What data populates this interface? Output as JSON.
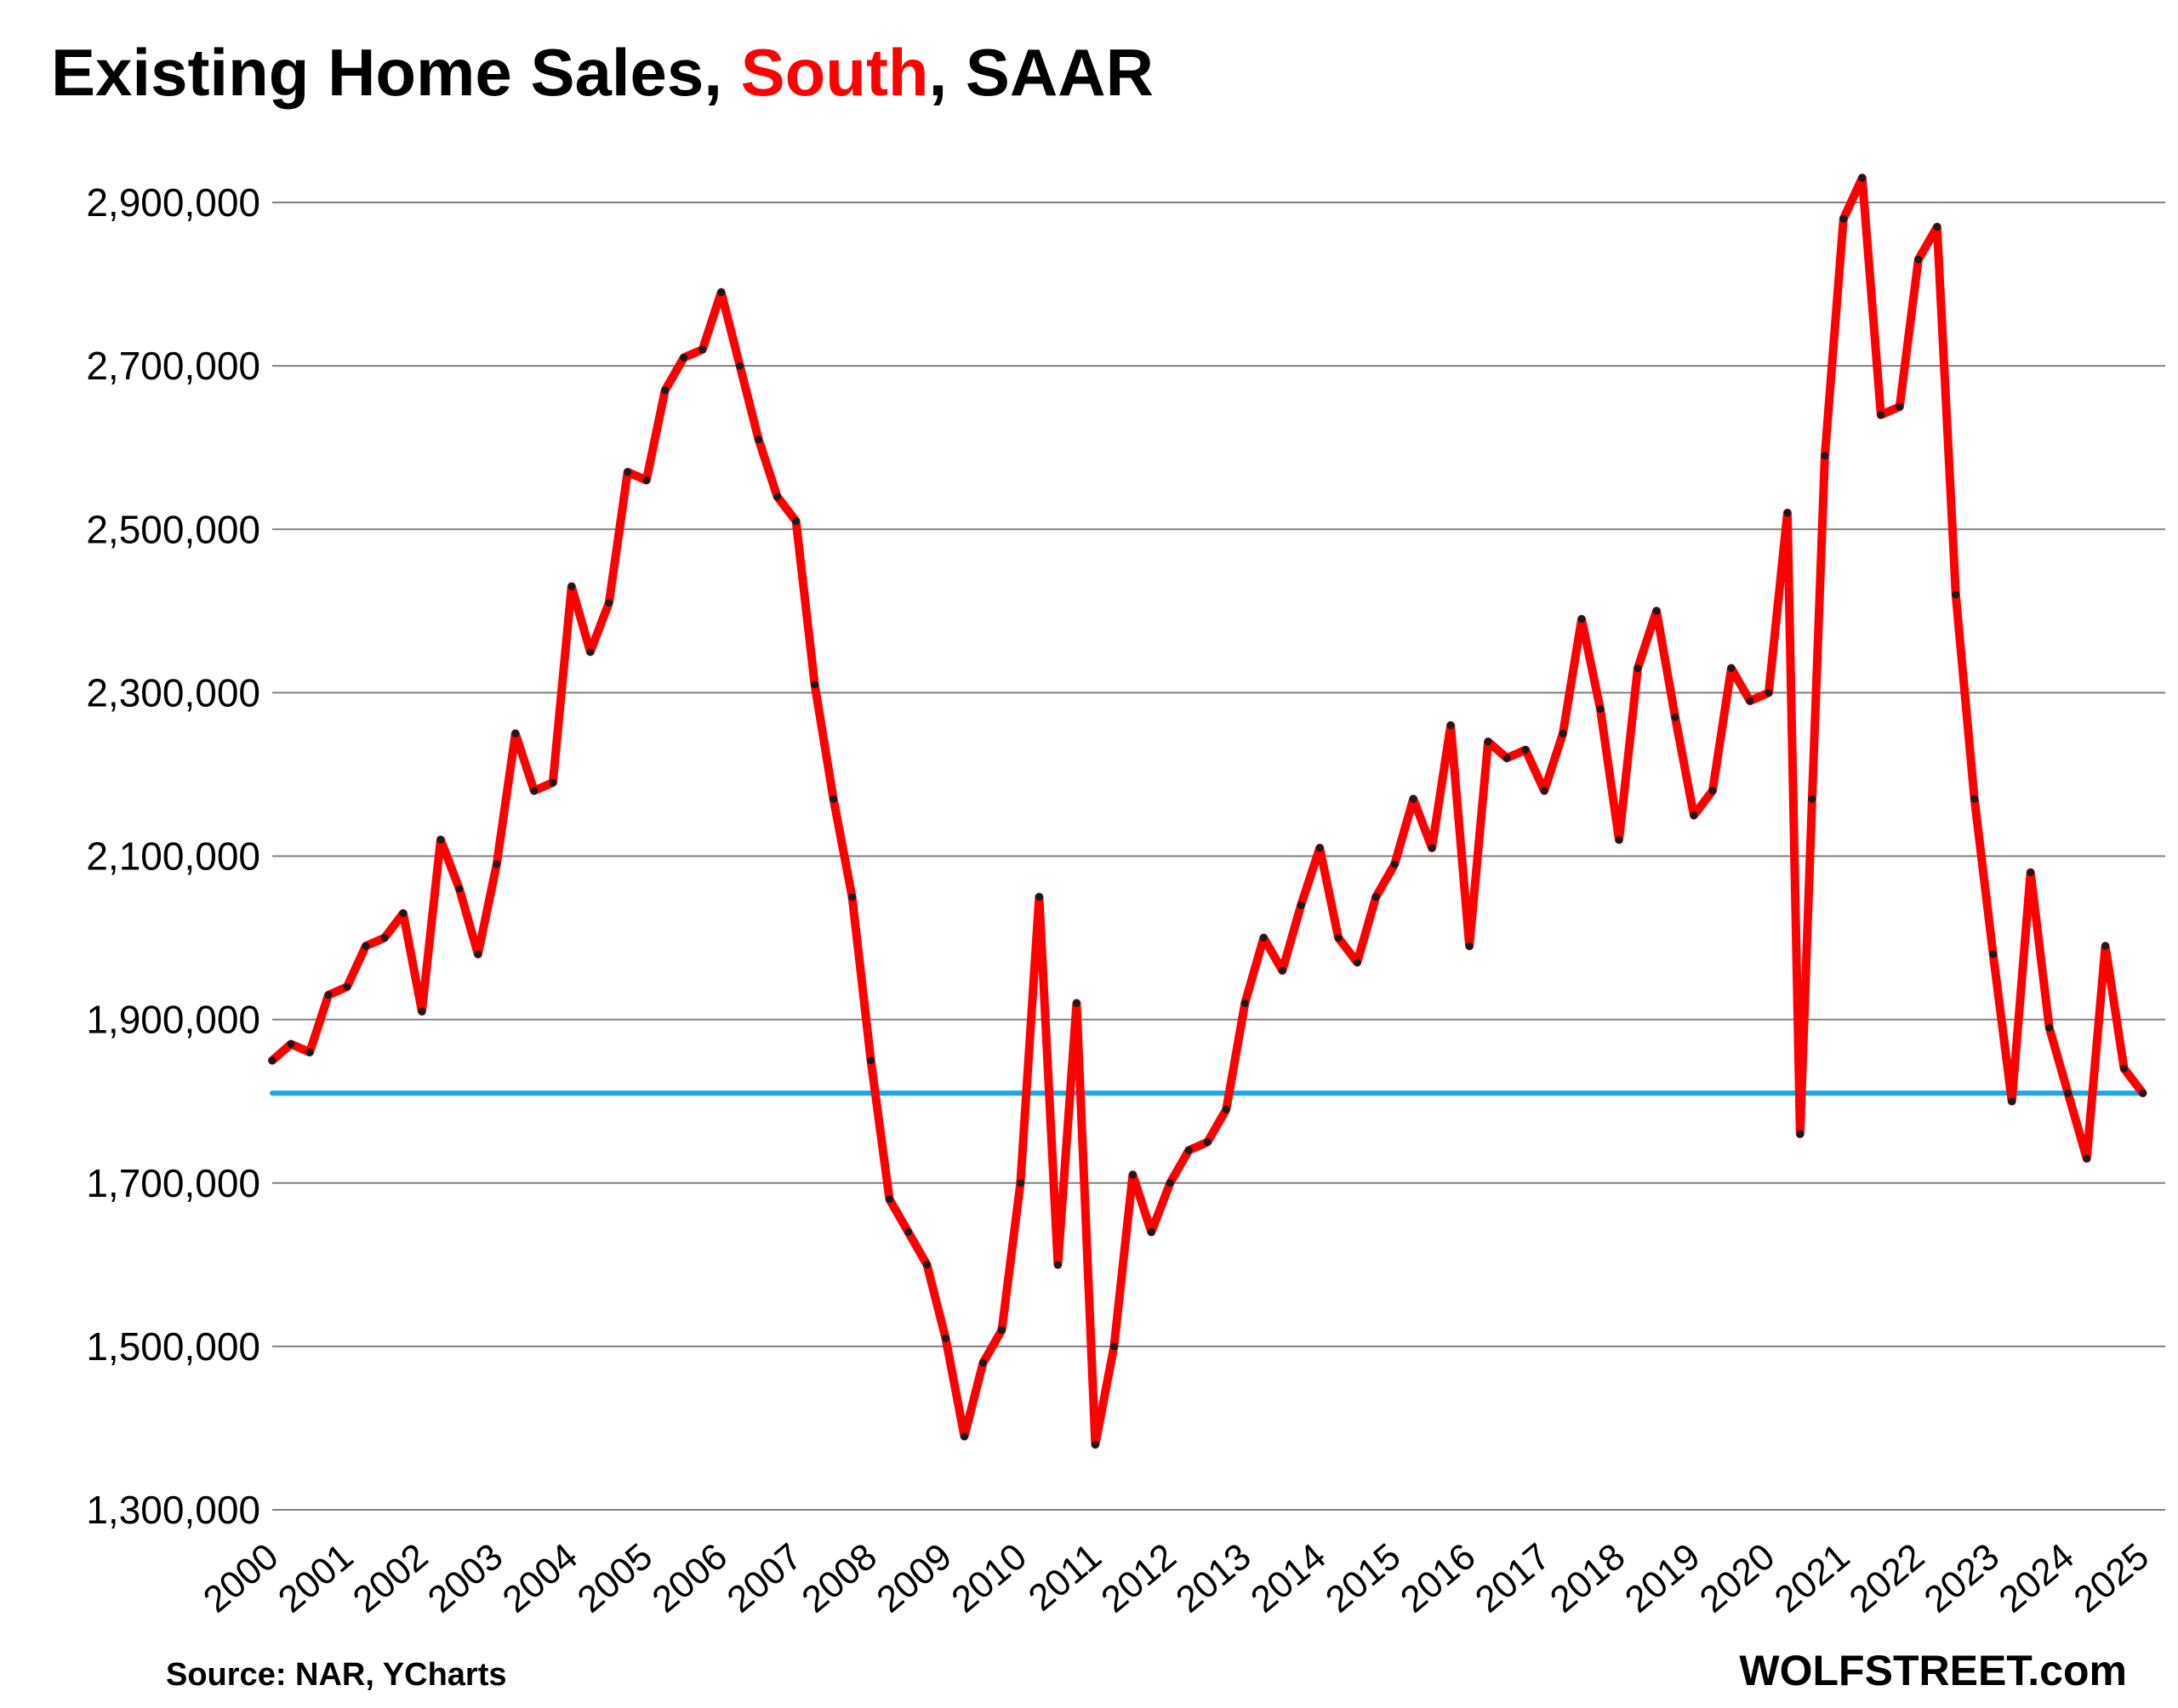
{
  "chart_data": {
    "type": "line",
    "title": "Existing Home Sales, South, SAAR",
    "title_parts": [
      "Existing Home Sales, ",
      "South",
      ", SAAR"
    ],
    "source": "Source: NAR, YCharts",
    "brand": "WOLFSTREET.com",
    "xlabel": "",
    "ylabel": "",
    "ylim": [
      1300000,
      2900000
    ],
    "y_ticks": [
      1300000,
      1500000,
      1700000,
      1900000,
      2100000,
      2300000,
      2500000,
      2700000,
      2900000
    ],
    "y_tick_labels": [
      "1,300,000",
      "1,500,000",
      "1,700,000",
      "1,900,000",
      "2,100,000",
      "2,300,000",
      "2,500,000",
      "2,700,000",
      "2,900,000"
    ],
    "x_tick_labels": [
      "2000",
      "2001",
      "2002",
      "2003",
      "2004",
      "2005",
      "2006",
      "2007",
      "2008",
      "2009",
      "2010",
      "2011",
      "2012",
      "2013",
      "2014",
      "2015",
      "2016",
      "2017",
      "2018",
      "2019",
      "2020",
      "2021",
      "2022",
      "2023",
      "2024",
      "2025"
    ],
    "grid": true,
    "legend": "none",
    "series": [
      {
        "color": "#ff0000",
        "x": [
          2000.0,
          2000.25,
          2000.5,
          2000.75,
          2001.0,
          2001.25,
          2001.5,
          2001.75,
          2002.0,
          2002.25,
          2002.5,
          2002.75,
          2003.0,
          2003.25,
          2003.5,
          2003.75,
          2004.0,
          2004.25,
          2004.5,
          2004.75,
          2005.0,
          2005.25,
          2005.5,
          2005.75,
          2006.0,
          2006.25,
          2006.5,
          2006.75,
          2007.0,
          2007.25,
          2007.5,
          2007.75,
          2008.0,
          2008.25,
          2008.5,
          2008.75,
          2009.0,
          2009.25,
          2009.5,
          2009.75,
          2010.0,
          2010.25,
          2010.5,
          2010.75,
          2011.0,
          2011.25,
          2011.5,
          2011.75,
          2012.0,
          2012.25,
          2012.5,
          2012.75,
          2013.0,
          2013.25,
          2013.5,
          2013.75,
          2014.0,
          2014.25,
          2014.5,
          2014.75,
          2015.0,
          2015.25,
          2015.5,
          2015.75,
          2016.0,
          2016.25,
          2016.5,
          2016.75,
          2017.0,
          2017.25,
          2017.5,
          2017.75,
          2018.0,
          2018.25,
          2018.5,
          2018.75,
          2019.0,
          2019.25,
          2019.5,
          2019.75,
          2020.0,
          2020.25,
          2020.42,
          2020.58,
          2020.75,
          2021.0,
          2021.25,
          2021.5,
          2021.75,
          2022.0,
          2022.25,
          2022.5,
          2022.75,
          2023.0,
          2023.25,
          2023.5,
          2023.75,
          2024.0,
          2024.25,
          2024.5,
          2024.75,
          2025.0
        ],
        "values": [
          1850000,
          1870000,
          1860000,
          1930000,
          1940000,
          1990000,
          2000000,
          2030000,
          1910000,
          2120000,
          2060000,
          1980000,
          2090000,
          2250000,
          2180000,
          2190000,
          2430000,
          2350000,
          2410000,
          2570000,
          2560000,
          2670000,
          2710000,
          2720000,
          2790000,
          2700000,
          2610000,
          2540000,
          2510000,
          2310000,
          2170000,
          2050000,
          1850000,
          1680000,
          1640000,
          1600000,
          1510000,
          1390000,
          1480000,
          1520000,
          1700000,
          2050000,
          1600000,
          1920000,
          1380000,
          1500000,
          1710000,
          1640000,
          1700000,
          1740000,
          1750000,
          1790000,
          1920000,
          2000000,
          1960000,
          2040000,
          2110000,
          2000000,
          1970000,
          2050000,
          2090000,
          2170000,
          2110000,
          2260000,
          1990000,
          2240000,
          2220000,
          2230000,
          2180000,
          2250000,
          2390000,
          2280000,
          2120000,
          2330000,
          2400000,
          2270000,
          2150000,
          2180000,
          2330000,
          2290000,
          2300000,
          2520000,
          1760000,
          2170000,
          2590000,
          2880000,
          2930000,
          2640000,
          2650000,
          2830000,
          2870000,
          2420000,
          2170000,
          1980000,
          1800000,
          2080000,
          1890000,
          1810000,
          1730000,
          1990000,
          1840000,
          1810000
        ]
      },
      {
        "color": "#1aa7e8",
        "x": [
          2000.0,
          2025.0
        ],
        "values": [
          1810000,
          1810000
        ]
      }
    ]
  }
}
